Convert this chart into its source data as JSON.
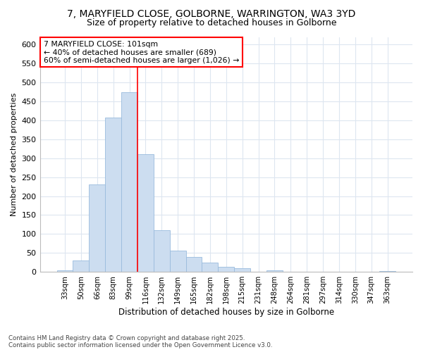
{
  "title_line1": "7, MARYFIELD CLOSE, GOLBORNE, WARRINGTON, WA3 3YD",
  "title_line2": "Size of property relative to detached houses in Golborne",
  "xlabel": "Distribution of detached houses by size in Golborne",
  "ylabel": "Number of detached properties",
  "categories": [
    "33sqm",
    "50sqm",
    "66sqm",
    "83sqm",
    "99sqm",
    "116sqm",
    "132sqm",
    "149sqm",
    "165sqm",
    "182sqm",
    "198sqm",
    "215sqm",
    "231sqm",
    "248sqm",
    "264sqm",
    "281sqm",
    "297sqm",
    "314sqm",
    "330sqm",
    "347sqm",
    "363sqm"
  ],
  "values": [
    5,
    30,
    230,
    407,
    475,
    311,
    110,
    57,
    40,
    25,
    14,
    10,
    0,
    5,
    0,
    0,
    0,
    0,
    0,
    0,
    3
  ],
  "bar_color": "#ccddf0",
  "bar_edge_color": "#99bbdd",
  "red_line_x": 4.5,
  "annotation_title": "7 MARYFIELD CLOSE: 101sqm",
  "annotation_line2": "← 40% of detached houses are smaller (689)",
  "annotation_line3": "60% of semi-detached houses are larger (1,026) →",
  "annotation_box_color": "white",
  "annotation_box_edge": "red",
  "ylim": [
    0,
    620
  ],
  "yticks": [
    0,
    50,
    100,
    150,
    200,
    250,
    300,
    350,
    400,
    450,
    500,
    550,
    600
  ],
  "fig_background_color": "#ffffff",
  "plot_background_color": "#ffffff",
  "grid_color": "#dde6f0",
  "footer_line1": "Contains HM Land Registry data © Crown copyright and database right 2025.",
  "footer_line2": "Contains public sector information licensed under the Open Government Licence v3.0."
}
